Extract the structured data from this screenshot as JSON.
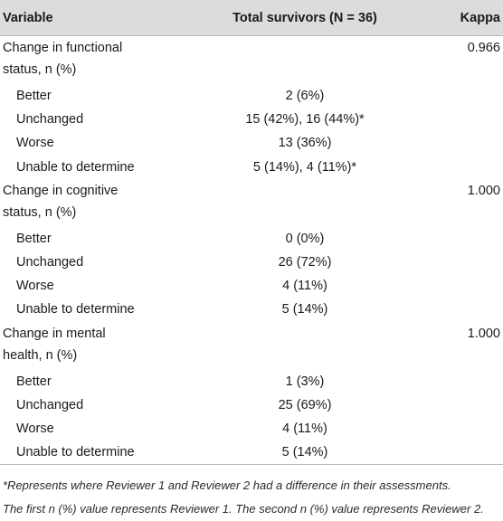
{
  "table": {
    "headers": {
      "variable": "Variable",
      "total": "Total survivors (N = 36)",
      "kappa": "Kappa"
    },
    "groups": [
      {
        "label_line1": "Change in functional",
        "label_line2": "status, n (%)",
        "kappa": "0.966",
        "rows": [
          {
            "label": "Better",
            "value": "2 (6%)"
          },
          {
            "label": "Unchanged",
            "value": "15 (42%), 16 (44%)*"
          },
          {
            "label": "Worse",
            "value": "13 (36%)"
          },
          {
            "label": "Unable to determine",
            "value": "5 (14%), 4 (11%)*"
          }
        ]
      },
      {
        "label_line1": "Change in cognitive",
        "label_line2": "status, n (%)",
        "kappa": "1.000",
        "rows": [
          {
            "label": "Better",
            "value": "0 (0%)"
          },
          {
            "label": "Unchanged",
            "value": "26 (72%)"
          },
          {
            "label": "Worse",
            "value": "4 (11%)"
          },
          {
            "label": "Unable to determine",
            "value": "5 (14%)"
          }
        ]
      },
      {
        "label_line1": "Change in mental",
        "label_line2": "health, n (%)",
        "kappa": "1.000",
        "rows": [
          {
            "label": "Better",
            "value": "1 (3%)"
          },
          {
            "label": "Unchanged",
            "value": "25 (69%)"
          },
          {
            "label": "Worse",
            "value": "4 (11%)"
          },
          {
            "label": "Unable to determine",
            "value": "5 (14%)"
          }
        ]
      }
    ]
  },
  "footnote": {
    "line1": "*Represents where Reviewer 1 and Reviewer 2 had a difference in their assessments.",
    "line2": "The first n (%) value represents Reviewer 1. The second n (%) value represents Reviewer 2."
  }
}
